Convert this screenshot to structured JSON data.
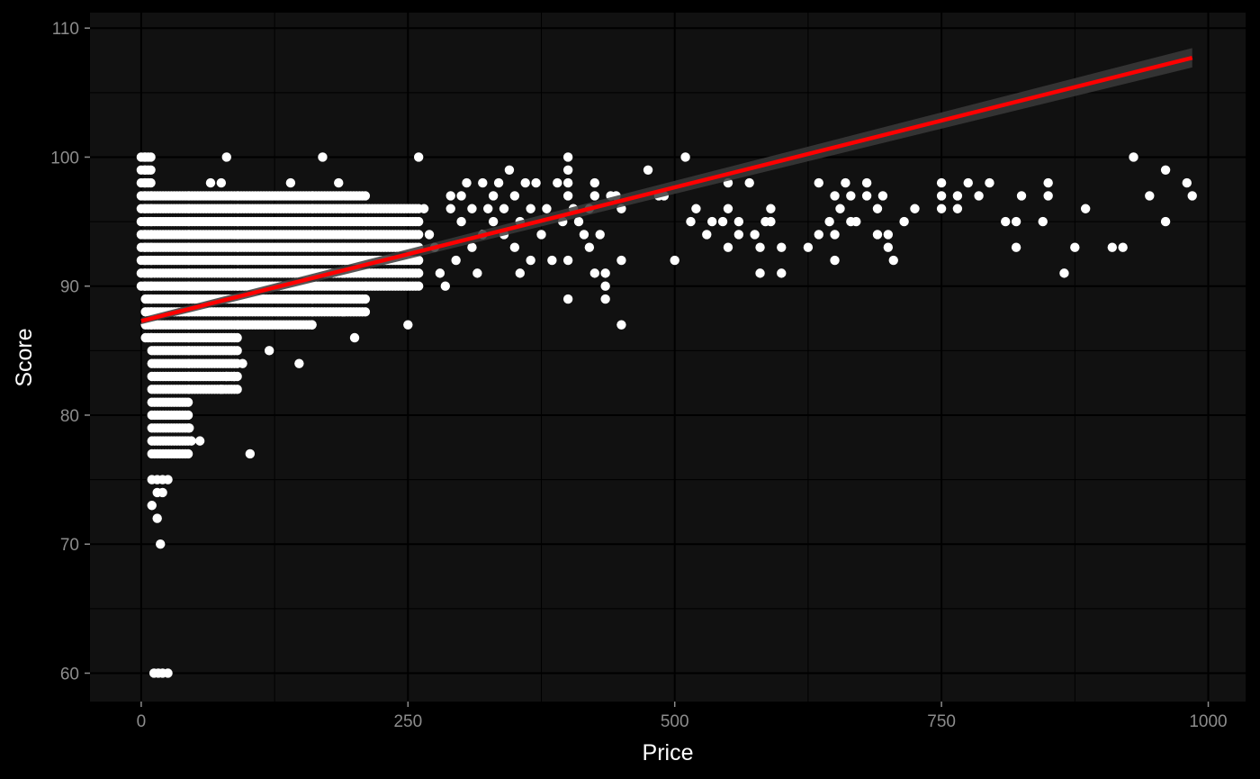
{
  "chart_data": {
    "type": "scatter",
    "title": "",
    "xlabel": "Price",
    "ylabel": "Score",
    "xlim": [
      -48,
      1035
    ],
    "ylim": [
      57.8,
      111.2
    ],
    "x_ticks": [
      0,
      250,
      500,
      750,
      1000
    ],
    "x_tick_labels": [
      "0",
      "250",
      "500",
      "750",
      "1000"
    ],
    "y_ticks": [
      60,
      70,
      80,
      90,
      100,
      110
    ],
    "y_tick_labels": [
      "60",
      "70",
      "80",
      "90",
      "100",
      "110"
    ],
    "grid": true,
    "legend": "none",
    "colors": {
      "background": "#000000",
      "panel": "#111111",
      "grid": "#000000",
      "points": "#ffffff",
      "trend_line": "#ff0000",
      "confidence_band": "#3a3a3a"
    },
    "trend_line": {
      "method": "linear",
      "x": [
        0,
        985
      ],
      "y": [
        87.3,
        107.7
      ],
      "ci_halfwidth": [
        0.25,
        0.75
      ]
    },
    "point_bands": [
      {
        "x": [
          0,
          3
        ],
        "scores": [
          90,
          91,
          92,
          93,
          94,
          95,
          96,
          97,
          98,
          99,
          100
        ]
      },
      {
        "x": [
          4,
          9
        ],
        "scores": [
          86,
          87,
          88,
          89,
          90,
          91,
          92,
          93,
          94,
          95,
          96,
          97,
          98,
          99,
          100
        ]
      },
      {
        "x": [
          10,
          44
        ],
        "scores": [
          77,
          78,
          79,
          80,
          81,
          82,
          83,
          84,
          85,
          86,
          87,
          88,
          89,
          90,
          91,
          92,
          93,
          94,
          95,
          96,
          97
        ]
      },
      {
        "x": [
          45,
          90
        ],
        "scores": [
          82,
          83,
          84,
          85,
          86,
          87,
          88,
          89,
          90,
          91,
          92,
          93,
          94,
          95,
          96,
          97
        ]
      },
      {
        "x": [
          91,
          160
        ],
        "scores": [
          87,
          88,
          89,
          90,
          91,
          92,
          93,
          94,
          95,
          96,
          97
        ]
      },
      {
        "x": [
          161,
          210
        ],
        "scores": [
          88,
          89,
          90,
          91,
          92,
          93,
          94,
          95,
          96,
          97
        ]
      },
      {
        "x": [
          211,
          260
        ],
        "scores": [
          90,
          91,
          92,
          93,
          94,
          95,
          96
        ]
      }
    ],
    "points": [
      {
        "x": 12,
        "y": 60
      },
      {
        "x": 16,
        "y": 60
      },
      {
        "x": 20,
        "y": 60
      },
      {
        "x": 25,
        "y": 60
      },
      {
        "x": 18,
        "y": 70
      },
      {
        "x": 15,
        "y": 72
      },
      {
        "x": 10,
        "y": 73
      },
      {
        "x": 15,
        "y": 74
      },
      {
        "x": 20,
        "y": 74
      },
      {
        "x": 10,
        "y": 75
      },
      {
        "x": 15,
        "y": 75
      },
      {
        "x": 20,
        "y": 75
      },
      {
        "x": 25,
        "y": 75
      },
      {
        "x": 47,
        "y": 78
      },
      {
        "x": 55,
        "y": 78
      },
      {
        "x": 45,
        "y": 79
      },
      {
        "x": 75,
        "y": 82
      },
      {
        "x": 80,
        "y": 83
      },
      {
        "x": 87,
        "y": 83
      },
      {
        "x": 95,
        "y": 84
      },
      {
        "x": 148,
        "y": 84
      },
      {
        "x": 102,
        "y": 77
      },
      {
        "x": 200,
        "y": 86
      },
      {
        "x": 120,
        "y": 85
      },
      {
        "x": 160,
        "y": 87
      },
      {
        "x": 250,
        "y": 87
      },
      {
        "x": 80,
        "y": 100
      },
      {
        "x": 170,
        "y": 100
      },
      {
        "x": 260,
        "y": 100
      },
      {
        "x": 140,
        "y": 98
      },
      {
        "x": 185,
        "y": 98
      },
      {
        "x": 65,
        "y": 98
      },
      {
        "x": 75,
        "y": 98
      },
      {
        "x": 265,
        "y": 96
      },
      {
        "x": 270,
        "y": 94
      },
      {
        "x": 275,
        "y": 93
      },
      {
        "x": 280,
        "y": 91
      },
      {
        "x": 285,
        "y": 90
      },
      {
        "x": 290,
        "y": 96
      },
      {
        "x": 290,
        "y": 97
      },
      {
        "x": 295,
        "y": 92
      },
      {
        "x": 300,
        "y": 95
      },
      {
        "x": 300,
        "y": 97
      },
      {
        "x": 305,
        "y": 98
      },
      {
        "x": 310,
        "y": 93
      },
      {
        "x": 310,
        "y": 96
      },
      {
        "x": 315,
        "y": 91
      },
      {
        "x": 320,
        "y": 94
      },
      {
        "x": 320,
        "y": 98
      },
      {
        "x": 325,
        "y": 96
      },
      {
        "x": 330,
        "y": 97
      },
      {
        "x": 330,
        "y": 95
      },
      {
        "x": 335,
        "y": 98
      },
      {
        "x": 340,
        "y": 96
      },
      {
        "x": 340,
        "y": 94
      },
      {
        "x": 345,
        "y": 99
      },
      {
        "x": 350,
        "y": 93
      },
      {
        "x": 350,
        "y": 97
      },
      {
        "x": 355,
        "y": 91
      },
      {
        "x": 355,
        "y": 95
      },
      {
        "x": 360,
        "y": 98
      },
      {
        "x": 365,
        "y": 92
      },
      {
        "x": 365,
        "y": 96
      },
      {
        "x": 370,
        "y": 98
      },
      {
        "x": 375,
        "y": 94
      },
      {
        "x": 380,
        "y": 96
      },
      {
        "x": 385,
        "y": 92
      },
      {
        "x": 390,
        "y": 98
      },
      {
        "x": 395,
        "y": 95
      },
      {
        "x": 400,
        "y": 89
      },
      {
        "x": 400,
        "y": 92
      },
      {
        "x": 400,
        "y": 97
      },
      {
        "x": 400,
        "y": 98
      },
      {
        "x": 400,
        "y": 99
      },
      {
        "x": 400,
        "y": 100
      },
      {
        "x": 405,
        "y": 96
      },
      {
        "x": 410,
        "y": 95
      },
      {
        "x": 415,
        "y": 94
      },
      {
        "x": 420,
        "y": 93
      },
      {
        "x": 420,
        "y": 96
      },
      {
        "x": 425,
        "y": 91
      },
      {
        "x": 425,
        "y": 97
      },
      {
        "x": 425,
        "y": 98
      },
      {
        "x": 430,
        "y": 94
      },
      {
        "x": 435,
        "y": 89
      },
      {
        "x": 435,
        "y": 90
      },
      {
        "x": 435,
        "y": 91
      },
      {
        "x": 440,
        "y": 97
      },
      {
        "x": 445,
        "y": 97
      },
      {
        "x": 450,
        "y": 87
      },
      {
        "x": 450,
        "y": 92
      },
      {
        "x": 450,
        "y": 96
      },
      {
        "x": 475,
        "y": 99
      },
      {
        "x": 485,
        "y": 97
      },
      {
        "x": 490,
        "y": 97
      },
      {
        "x": 500,
        "y": 92
      },
      {
        "x": 510,
        "y": 100
      },
      {
        "x": 515,
        "y": 95
      },
      {
        "x": 520,
        "y": 96
      },
      {
        "x": 530,
        "y": 94
      },
      {
        "x": 535,
        "y": 95
      },
      {
        "x": 545,
        "y": 95
      },
      {
        "x": 550,
        "y": 93
      },
      {
        "x": 550,
        "y": 96
      },
      {
        "x": 550,
        "y": 98
      },
      {
        "x": 560,
        "y": 94
      },
      {
        "x": 560,
        "y": 95
      },
      {
        "x": 570,
        "y": 98
      },
      {
        "x": 575,
        "y": 94
      },
      {
        "x": 580,
        "y": 91
      },
      {
        "x": 580,
        "y": 93
      },
      {
        "x": 585,
        "y": 95
      },
      {
        "x": 590,
        "y": 95
      },
      {
        "x": 590,
        "y": 96
      },
      {
        "x": 600,
        "y": 91
      },
      {
        "x": 600,
        "y": 93
      },
      {
        "x": 625,
        "y": 93
      },
      {
        "x": 635,
        "y": 94
      },
      {
        "x": 635,
        "y": 98
      },
      {
        "x": 645,
        "y": 95
      },
      {
        "x": 650,
        "y": 92
      },
      {
        "x": 650,
        "y": 94
      },
      {
        "x": 650,
        "y": 97
      },
      {
        "x": 655,
        "y": 96
      },
      {
        "x": 660,
        "y": 98
      },
      {
        "x": 665,
        "y": 97
      },
      {
        "x": 665,
        "y": 95
      },
      {
        "x": 670,
        "y": 95
      },
      {
        "x": 680,
        "y": 97
      },
      {
        "x": 680,
        "y": 98
      },
      {
        "x": 690,
        "y": 94
      },
      {
        "x": 690,
        "y": 96
      },
      {
        "x": 695,
        "y": 97
      },
      {
        "x": 700,
        "y": 93
      },
      {
        "x": 700,
        "y": 94
      },
      {
        "x": 705,
        "y": 92
      },
      {
        "x": 715,
        "y": 95
      },
      {
        "x": 725,
        "y": 96
      },
      {
        "x": 750,
        "y": 96
      },
      {
        "x": 750,
        "y": 97
      },
      {
        "x": 750,
        "y": 98
      },
      {
        "x": 765,
        "y": 96
      },
      {
        "x": 765,
        "y": 97
      },
      {
        "x": 775,
        "y": 98
      },
      {
        "x": 785,
        "y": 97
      },
      {
        "x": 795,
        "y": 98
      },
      {
        "x": 810,
        "y": 95
      },
      {
        "x": 820,
        "y": 93
      },
      {
        "x": 820,
        "y": 95
      },
      {
        "x": 825,
        "y": 97
      },
      {
        "x": 845,
        "y": 95
      },
      {
        "x": 850,
        "y": 97
      },
      {
        "x": 850,
        "y": 98
      },
      {
        "x": 865,
        "y": 91
      },
      {
        "x": 875,
        "y": 93
      },
      {
        "x": 885,
        "y": 96
      },
      {
        "x": 910,
        "y": 93
      },
      {
        "x": 920,
        "y": 93
      },
      {
        "x": 930,
        "y": 100
      },
      {
        "x": 945,
        "y": 97
      },
      {
        "x": 960,
        "y": 95
      },
      {
        "x": 960,
        "y": 99
      },
      {
        "x": 980,
        "y": 98
      },
      {
        "x": 985,
        "y": 97
      }
    ]
  }
}
